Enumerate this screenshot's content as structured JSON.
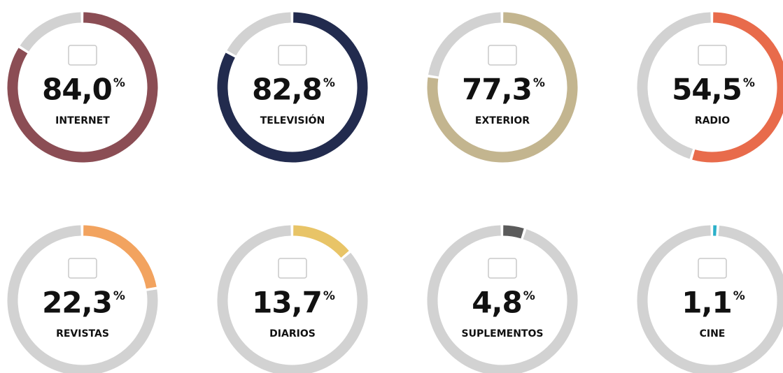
{
  "chart_data": {
    "type": "gauge",
    "categories": [
      "INTERNET",
      "TELEVISIÓN",
      "EXTERIOR",
      "RADIO",
      "REVISTAS",
      "DIARIOS",
      "SUPLEMENTOS",
      "CINE"
    ],
    "values": [
      84.0,
      82.8,
      77.3,
      54.5,
      22.3,
      13.7,
      4.8,
      1.1
    ],
    "value_labels": [
      "84,0",
      "82,8",
      "77,3",
      "54,5",
      "22,3",
      "13,7",
      "4,8",
      "1,1"
    ],
    "unit": "%",
    "colors": [
      "#8b4d54",
      "#222b4e",
      "#c3b58f",
      "#e86b4b",
      "#f2a35f",
      "#e8c467",
      "#5b5b5b",
      "#2bb0c9"
    ],
    "track_color": "#d2d2d2",
    "ylim": [
      0,
      100
    ]
  }
}
